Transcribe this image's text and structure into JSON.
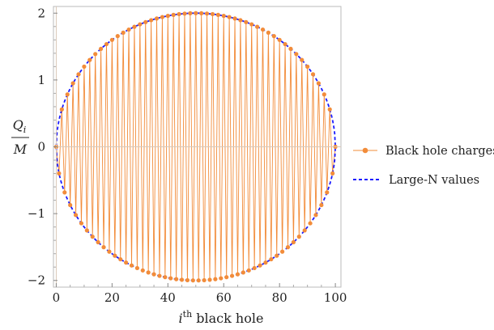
{
  "chart_data": {
    "type": "scatter",
    "x_axis": {
      "label_main": "i",
      "label_sup": "th",
      "label_rest": " black hole",
      "range": [
        -1,
        102
      ],
      "ticks": [
        0,
        20,
        40,
        60,
        80,
        100
      ],
      "tick_labels": [
        "0",
        "20",
        "40",
        "60",
        "80",
        "100"
      ]
    },
    "y_axis": {
      "label_numerator": "Q",
      "label_numerator_sub": "i",
      "label_denominator": "M",
      "range": [
        -2.1,
        2.1
      ],
      "ticks": [
        -2,
        -1,
        0,
        1,
        2
      ],
      "tick_labels": [
        "−2",
        "−1",
        "0",
        "1",
        "2"
      ]
    },
    "grid": false,
    "legend_position": "right",
    "series": [
      {
        "name": "Black hole charges",
        "kind": "points-joined",
        "color": "#f28c3a",
        "n_points": 101,
        "x_start": 0,
        "x_step": 1,
        "pattern": "alternating sign, |Q_i/M| follows 2*sqrt(1-(1-i/50)^2)"
      },
      {
        "name": "Large-N values",
        "kind": "dashed-curve",
        "color": "#1a1aff",
        "formula": "±2*sqrt(1-(1-x/50)^2), x from 0 to 100"
      }
    ]
  }
}
